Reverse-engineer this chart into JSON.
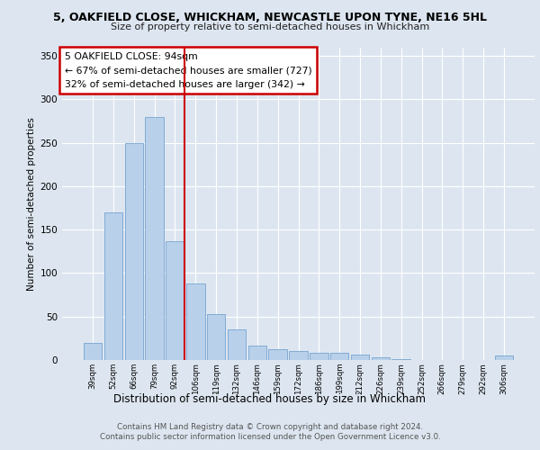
{
  "title": "5, OAKFIELD CLOSE, WHICKHAM, NEWCASTLE UPON TYNE, NE16 5HL",
  "subtitle": "Size of property relative to semi-detached houses in Whickham",
  "xlabel": "Distribution of semi-detached houses by size in Whickham",
  "ylabel": "Number of semi-detached properties",
  "footnote1": "Contains HM Land Registry data © Crown copyright and database right 2024.",
  "footnote2": "Contains public sector information licensed under the Open Government Licence v3.0.",
  "annotation_title": "5 OAKFIELD CLOSE: 94sqm",
  "annotation_line1": "← 67% of semi-detached houses are smaller (727)",
  "annotation_line2": "32% of semi-detached houses are larger (342) →",
  "bar_labels": [
    "39sqm",
    "52sqm",
    "66sqm",
    "79sqm",
    "92sqm",
    "106sqm",
    "119sqm",
    "132sqm",
    "146sqm",
    "159sqm",
    "172sqm",
    "186sqm",
    "199sqm",
    "212sqm",
    "226sqm",
    "239sqm",
    "252sqm",
    "266sqm",
    "279sqm",
    "292sqm",
    "306sqm"
  ],
  "bar_values": [
    20,
    170,
    250,
    280,
    137,
    88,
    53,
    35,
    17,
    12,
    10,
    8,
    8,
    6,
    3,
    1,
    0,
    0,
    0,
    0,
    5
  ],
  "highlight_bar_index": 4,
  "bar_color": "#b8d0ea",
  "bar_edge_color": "#6699cc",
  "marker_line_color": "#cc0000",
  "annotation_box_color": "#cc0000",
  "background_color": "#dde6f0",
  "ylim": [
    0,
    360
  ],
  "yticks": [
    0,
    50,
    100,
    150,
    200,
    250,
    300,
    350
  ]
}
